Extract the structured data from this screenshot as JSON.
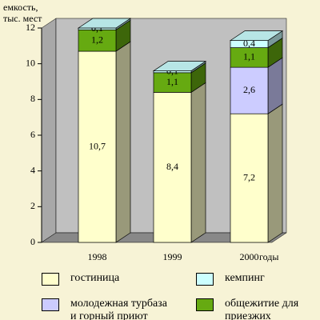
{
  "chart_data": {
    "type": "stacked_bar_3d",
    "y_label": [
      "емкость,",
      "тыс. мест"
    ],
    "x_label": "годы",
    "categories": [
      "1998",
      "1999",
      "2000"
    ],
    "ylim": [
      0,
      12
    ],
    "yticks": [
      0,
      2,
      4,
      6,
      8,
      10,
      12
    ],
    "series": [
      {
        "name": "гостиница",
        "color": "#ffffcc",
        "values": [
          10.7,
          8.4,
          7.2
        ],
        "value_labels": [
          "10,7",
          "8,4",
          "7,2"
        ]
      },
      {
        "name": "молодежная турбаза и горный приют",
        "color": "#ccccff",
        "values": [
          null,
          null,
          2.6
        ],
        "value_labels": [
          null,
          null,
          "2,6"
        ]
      },
      {
        "name": "общежитие для приезжих",
        "color": "#66aa11",
        "values": [
          1.2,
          1.1,
          1.1
        ],
        "value_labels": [
          "1,2",
          "1,1",
          "1,1"
        ]
      },
      {
        "name": "кемпинг",
        "color": "#ccffff",
        "values": [
          0.1,
          0.1,
          0.4
        ],
        "value_labels": [
          "0,1",
          "0,1",
          "0,4"
        ]
      }
    ]
  }
}
